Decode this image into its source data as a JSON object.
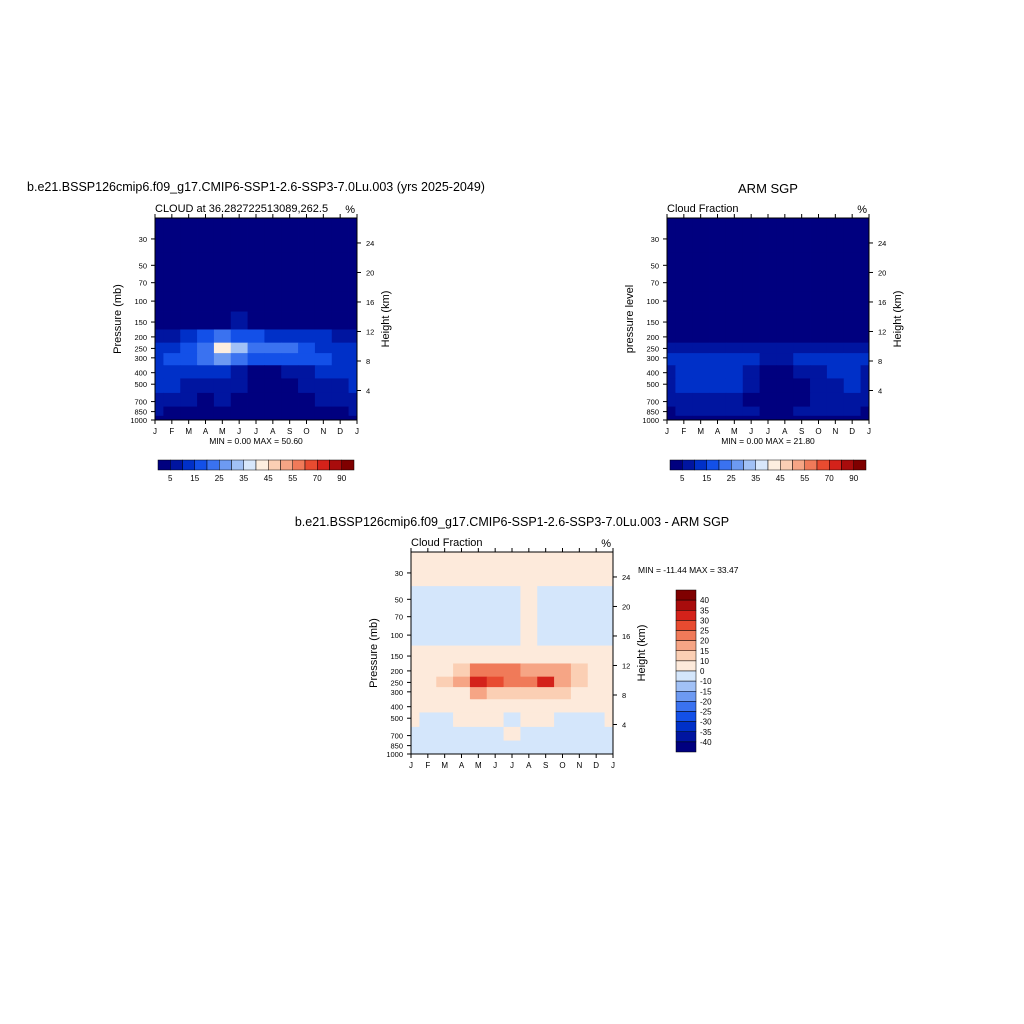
{
  "chart_data": [
    {
      "type": "heatmap",
      "title": "b.e21.BSSP126cmip6.f09_g17.CMIP6-SSP1-2.6-SSP3-7.0Lu.003 (yrs 2025-2049)",
      "subtitle_left": "CLOUD at 36.282722513089,262.5",
      "subtitle_right": "%",
      "ylabel": "Pressure (mb)",
      "ylabel_right": "Height (km)",
      "x_ticks": [
        "J",
        "F",
        "M",
        "A",
        "M",
        "J",
        "J",
        "A",
        "S",
        "O",
        "N",
        "D",
        "J"
      ],
      "y_ticks": [
        "30",
        "50",
        "70",
        "100",
        "150",
        "200",
        "250",
        "300",
        "400",
        "500",
        "700",
        "850",
        "1000"
      ],
      "height_ticks": [
        "24",
        "20",
        "16",
        "12",
        "8",
        "4"
      ],
      "minmax": "MIN =   0.00 MAX =  50.60",
      "colorbar_labels": [
        "5",
        "15",
        "25",
        "35",
        "45",
        "55",
        "70",
        "90"
      ],
      "levels": [
        0,
        5,
        10,
        15,
        20,
        25,
        30,
        35,
        40,
        45,
        50,
        55,
        60,
        70,
        80,
        90,
        100
      ],
      "grid": {
        "months": [
          "J",
          "F",
          "M",
          "A",
          "M",
          "J",
          "J",
          "A",
          "S",
          "O",
          "N",
          "D",
          "J"
        ],
        "pressures": [
          30,
          50,
          70,
          100,
          150,
          200,
          250,
          300,
          400,
          500,
          700,
          850,
          1000
        ],
        "values": [
          [
            0,
            0,
            0,
            0,
            0,
            0,
            0,
            0,
            0,
            0,
            0,
            0,
            0
          ],
          [
            0,
            0,
            0,
            0,
            0,
            0,
            0,
            0,
            0,
            0,
            0,
            0,
            0
          ],
          [
            0,
            0,
            0,
            0,
            0,
            0,
            0,
            0,
            0,
            0,
            0,
            0,
            0
          ],
          [
            0,
            0,
            0,
            0,
            0,
            0,
            0,
            0,
            0,
            0,
            0,
            0,
            0
          ],
          [
            0,
            0,
            1,
            2,
            4,
            6,
            4,
            2,
            2,
            1,
            0,
            0,
            0
          ],
          [
            7,
            9,
            12,
            16,
            22,
            18,
            16,
            14,
            14,
            13,
            11,
            9,
            7
          ],
          [
            11,
            13,
            17,
            24,
            44,
            33,
            22,
            20,
            20,
            18,
            14,
            12,
            11
          ],
          [
            14,
            15,
            17,
            20,
            27,
            24,
            18,
            18,
            18,
            17,
            15,
            14,
            14
          ],
          [
            12,
            11,
            11,
            12,
            12,
            9,
            4,
            4,
            5,
            8,
            10,
            11,
            12
          ],
          [
            10,
            10,
            9,
            9,
            8,
            5,
            2,
            2,
            3,
            6,
            8,
            9,
            10
          ],
          [
            8,
            7,
            6,
            4,
            5,
            3,
            1,
            1,
            2,
            4,
            6,
            7,
            8
          ],
          [
            5,
            4,
            3,
            2,
            3,
            3,
            2,
            2,
            3,
            3,
            4,
            4,
            5
          ],
          [
            2,
            2,
            2,
            2,
            2,
            2,
            2,
            2,
            2,
            2,
            2,
            2,
            2
          ]
        ]
      }
    },
    {
      "type": "heatmap",
      "title": "ARM SGP",
      "subtitle_left": "Cloud Fraction",
      "subtitle_right": "%",
      "ylabel": "pressure level",
      "ylabel_right": "Height (km)",
      "x_ticks": [
        "J",
        "F",
        "M",
        "A",
        "M",
        "J",
        "J",
        "A",
        "S",
        "O",
        "N",
        "D",
        "J"
      ],
      "y_ticks": [
        "30",
        "50",
        "70",
        "100",
        "150",
        "200",
        "250",
        "300",
        "400",
        "500",
        "700",
        "850",
        "1000"
      ],
      "height_ticks": [
        "24",
        "20",
        "16",
        "12",
        "8",
        "4"
      ],
      "minmax": "MIN =   0.00 MAX =  21.80",
      "colorbar_labels": [
        "5",
        "15",
        "25",
        "35",
        "45",
        "55",
        "70",
        "90"
      ],
      "levels": [
        0,
        5,
        10,
        15,
        20,
        25,
        30,
        35,
        40,
        45,
        50,
        55,
        60,
        70,
        80,
        90,
        100
      ],
      "grid": {
        "months": [
          "J",
          "F",
          "M",
          "A",
          "M",
          "J",
          "J",
          "A",
          "S",
          "O",
          "N",
          "D",
          "J"
        ],
        "pressures": [
          30,
          50,
          70,
          100,
          150,
          200,
          250,
          300,
          400,
          500,
          700,
          850,
          1000
        ],
        "values": [
          [
            0,
            0,
            0,
            0,
            0,
            0,
            0,
            0,
            0,
            0,
            0,
            0,
            0
          ],
          [
            0,
            0,
            0,
            0,
            0,
            0,
            0,
            0,
            0,
            0,
            0,
            0,
            0
          ],
          [
            0,
            0,
            0,
            0,
            0,
            0,
            0,
            0,
            0,
            0,
            0,
            0,
            0
          ],
          [
            0,
            0,
            0,
            0,
            0,
            0,
            0,
            0,
            0,
            0,
            0,
            0,
            0
          ],
          [
            0,
            0,
            0,
            0,
            0,
            0,
            0,
            0,
            0,
            0,
            0,
            0,
            0
          ],
          [
            2,
            2,
            2,
            2,
            1,
            2,
            2,
            1,
            1,
            1,
            1,
            2,
            2
          ],
          [
            7,
            8,
            8,
            9,
            7,
            8,
            7,
            6,
            6,
            7,
            7,
            8,
            7
          ],
          [
            10,
            10,
            11,
            11,
            12,
            10,
            9,
            9,
            10,
            10,
            10,
            11,
            10
          ],
          [
            9,
            10,
            11,
            11,
            12,
            6,
            3,
            4,
            5,
            9,
            10,
            11,
            9
          ],
          [
            9,
            10,
            11,
            11,
            11,
            6,
            3,
            3,
            4,
            8,
            9,
            10,
            9
          ],
          [
            7,
            8,
            9,
            8,
            8,
            4,
            2,
            1,
            3,
            5,
            7,
            8,
            7
          ],
          [
            4,
            5,
            8,
            6,
            6,
            5,
            4,
            4,
            5,
            6,
            7,
            5,
            4
          ],
          [
            2,
            2,
            2,
            2,
            2,
            2,
            2,
            2,
            2,
            2,
            2,
            2,
            2
          ]
        ]
      }
    },
    {
      "type": "heatmap",
      "title": "b.e21.BSSP126cmip6.f09_g17.CMIP6-SSP1-2.6-SSP3-7.0Lu.003 - ARM SGP",
      "subtitle_left": "Cloud Fraction",
      "subtitle_right": "%",
      "ylabel": "Pressure (mb)",
      "ylabel_right": "Height (km)",
      "x_ticks": [
        "J",
        "F",
        "M",
        "A",
        "M",
        "J",
        "J",
        "A",
        "S",
        "O",
        "N",
        "D",
        "J"
      ],
      "y_ticks": [
        "30",
        "50",
        "70",
        "100",
        "150",
        "200",
        "250",
        "300",
        "400",
        "500",
        "700",
        "850",
        "1000"
      ],
      "height_ticks": [
        "24",
        "20",
        "16",
        "12",
        "8",
        "4"
      ],
      "minmax": "MIN = -11.44 MAX =  33.47",
      "colorbar_labels": [
        "40",
        "35",
        "30",
        "25",
        "20",
        "15",
        "10",
        "0",
        "-10",
        "-15",
        "-20",
        "-25",
        "-30",
        "-35",
        "-40"
      ],
      "levels": [
        -45,
        -40,
        -35,
        -30,
        -25,
        -20,
        -15,
        -10,
        0,
        10,
        15,
        20,
        25,
        30,
        35,
        40,
        45
      ],
      "grid": {
        "months": [
          "J",
          "F",
          "M",
          "A",
          "M",
          "J",
          "J",
          "A",
          "S",
          "O",
          "N",
          "D",
          "J"
        ],
        "pressures": [
          30,
          50,
          70,
          100,
          150,
          200,
          250,
          300,
          400,
          500,
          700,
          850,
          1000
        ],
        "values": [
          [
            1,
            1,
            1,
            1,
            1,
            1,
            1,
            1,
            1,
            1,
            1,
            1,
            1
          ],
          [
            -1,
            -1,
            -1,
            -1,
            -1,
            -1,
            -1,
            1,
            -1,
            -1,
            -1,
            -1,
            -1
          ],
          [
            -1,
            -1,
            -1,
            -1,
            -1,
            -1,
            -1,
            1,
            -1,
            -1,
            -1,
            -1,
            -1
          ],
          [
            -1,
            -1,
            -1,
            -1,
            -1,
            -1,
            -1,
            1,
            -1,
            -1,
            -1,
            -1,
            -1
          ],
          [
            1,
            1,
            2,
            3,
            5,
            5,
            4,
            3,
            3,
            2,
            1,
            1,
            1
          ],
          [
            2,
            4,
            8,
            14,
            24,
            22,
            20,
            18,
            18,
            15,
            10,
            5,
            2
          ],
          [
            2,
            5,
            10,
            16,
            32,
            28,
            20,
            20,
            30,
            18,
            10,
            5,
            2
          ],
          [
            3,
            4,
            6,
            9,
            15,
            14,
            10,
            10,
            12,
            10,
            6,
            4,
            3
          ],
          [
            2,
            1,
            1,
            2,
            2,
            3,
            1,
            1,
            2,
            2,
            2,
            1,
            2
          ],
          [
            1,
            -1,
            -1,
            1,
            1,
            1,
            -1,
            1,
            1,
            -1,
            -1,
            -1,
            1
          ],
          [
            -1,
            -1,
            -1,
            -1,
            -1,
            -1,
            1,
            -1,
            -1,
            -1,
            -1,
            -1,
            -1
          ],
          [
            -1,
            -1,
            -1,
            -1,
            -1,
            -1,
            -1,
            -1,
            -1,
            -1,
            -1,
            -1,
            -1
          ],
          [
            -1,
            -1,
            -1,
            -1,
            -1,
            -1,
            -1,
            -1,
            -1,
            -1,
            -1,
            -1,
            -1
          ]
        ]
      }
    }
  ],
  "palettes": {
    "sequential": [
      "#00007f",
      "#0015a0",
      "#0030c8",
      "#1350e8",
      "#3a72f0",
      "#6d9af2",
      "#a1c1f6",
      "#d8e7fb",
      "#fdeedf",
      "#fbcfb4",
      "#f6a585",
      "#f07a59",
      "#e84b30",
      "#d4221a",
      "#a80c0c",
      "#7f0000"
    ],
    "diverging": [
      "#00007f",
      "#0015a0",
      "#0030c8",
      "#1350e8",
      "#3a72f0",
      "#6d9af2",
      "#a1c1f6",
      "#d4e6fb",
      "#fdeadb",
      "#fbcfb4",
      "#f6a585",
      "#f07a59",
      "#e84b30",
      "#d4221a",
      "#a80c0c",
      "#7f0000"
    ]
  }
}
